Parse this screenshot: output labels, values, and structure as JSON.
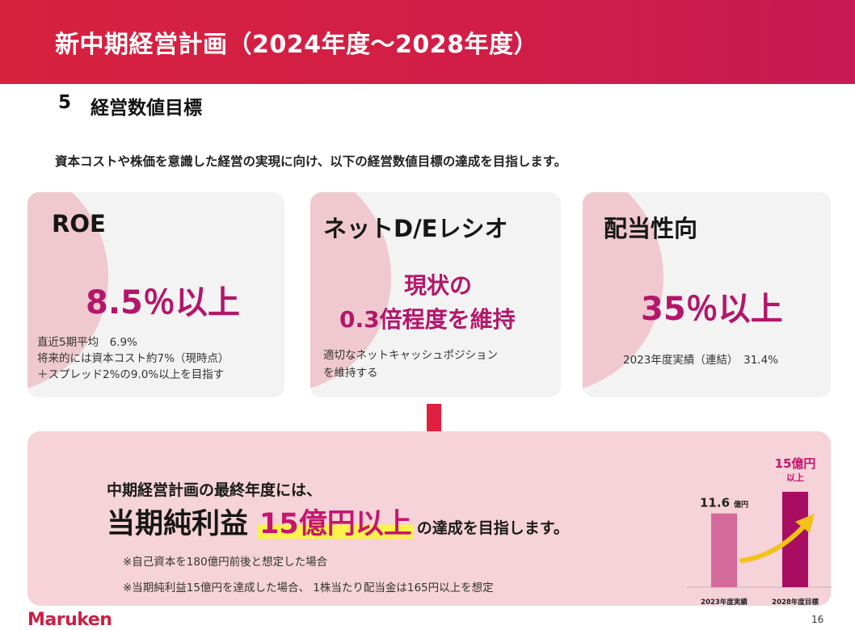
{
  "header": {
    "title": "新中期経営計画（2024年度～2028年度）"
  },
  "section": {
    "number": "5",
    "title": "経営数値目標"
  },
  "intro": "資本コストや株価を意識した経営の実現に向け、以下の経営数値目標の達成を目指します。",
  "cards": {
    "roe": {
      "title": "ROE",
      "value": "8.5％以上",
      "notes": [
        "直近5期平均　6.9%",
        "将来的には資本コスト約7%（現時点）",
        "＋スプレッド2%の9.0%以上を目指す"
      ]
    },
    "de": {
      "title": "ネットD/Eレシオ",
      "value_line1": "現状の",
      "value_line2": "0.3倍程度を維持",
      "notes": [
        "適切なネットキャッシュポジション",
        "を維持する"
      ]
    },
    "payout": {
      "title": "配当性向",
      "value": "35％以上",
      "note": "2023年度実績（連結）　31.4%"
    }
  },
  "bottom": {
    "line1": "中期経営計画の最終年度には、",
    "big": "当期純利益",
    "highlight": "15億円以上",
    "tail": "の達成を目指します。",
    "footnotes": [
      "※自己資本を180億円前後と想定した場合",
      "※当期純利益15億円を達成した場合、 1株当たり配当金は165円以上を想定"
    ]
  },
  "chart_data": {
    "type": "bar",
    "categories": [
      "2023年度実績",
      "2028年度目標"
    ],
    "values": [
      11.6,
      15
    ],
    "data_labels": [
      {
        "value": "11.6",
        "unit": "億円"
      },
      {
        "value": "15億円",
        "unit": "以上"
      }
    ],
    "colors": [
      "#d46a9a",
      "#a80d62"
    ],
    "arrow_color": "#f3c218",
    "ylim": [
      0,
      16
    ]
  },
  "footer": {
    "logo": "Maruken",
    "page": "16"
  }
}
